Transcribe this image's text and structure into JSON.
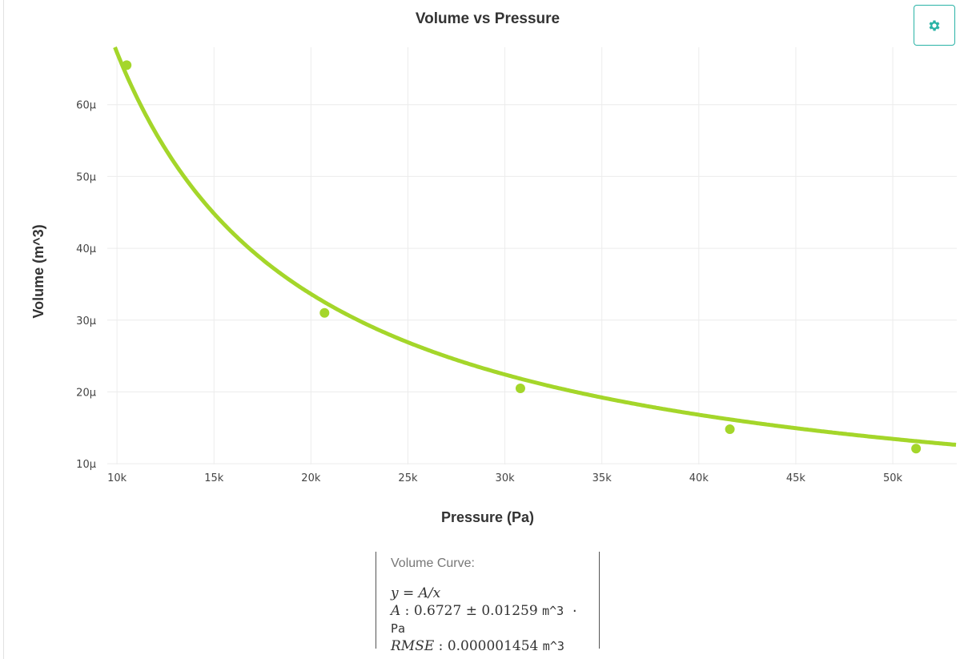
{
  "chart_data": {
    "type": "scatter",
    "title": "Volume vs Pressure",
    "xlabel": "Pressure (Pa)",
    "ylabel": "Volume (m^3)",
    "xlim": [
      9500,
      53300
    ],
    "ylim": [
      9.9e-06,
      6.8e-05
    ],
    "x_ticks": [
      10000,
      15000,
      20000,
      25000,
      30000,
      35000,
      40000,
      45000,
      50000
    ],
    "x_tick_labels": [
      "10k",
      "15k",
      "20k",
      "25k",
      "30k",
      "35k",
      "40k",
      "45k",
      "50k"
    ],
    "y_ticks": [
      1e-05,
      2e-05,
      3e-05,
      4e-05,
      5e-05,
      6e-05
    ],
    "y_tick_labels": [
      "10µ",
      "20µ",
      "30µ",
      "40µ",
      "50µ",
      "60µ"
    ],
    "grid": true,
    "color": "#a4d62a",
    "series": [
      {
        "x": [
          10500,
          20700,
          30800,
          41600,
          51200
        ],
        "y": [
          6.55e-05,
          3.1e-05,
          2.05e-05,
          1.48e-05,
          1.21e-05
        ]
      }
    ],
    "fit": {
      "model": "y = A/x",
      "A": 0.6727
    }
  },
  "fit_box": {
    "title": "Volume Curve:",
    "equation": "y = A/x",
    "a_label": "A",
    "a_value": "0.6727 ± 0.01259",
    "a_unit": "m^3 · Pa",
    "rmse_label": "RMSE",
    "rmse_value": "0.000001454",
    "rmse_unit": "m^3"
  },
  "settings": {
    "icon": "gear-icon",
    "color": "#2ab3a6"
  }
}
